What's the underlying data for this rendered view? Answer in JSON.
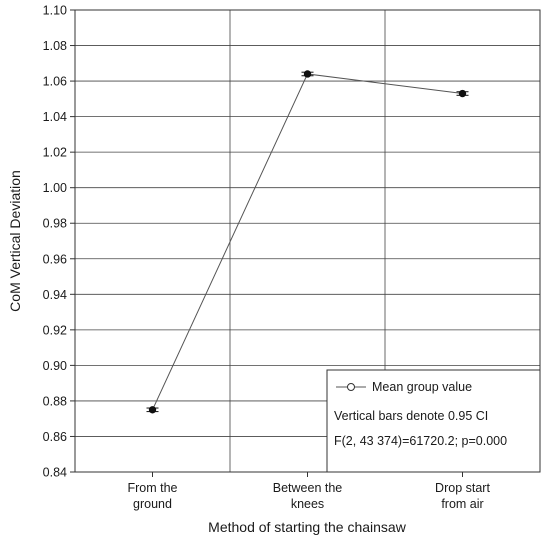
{
  "chart_data": {
    "type": "line",
    "xlabel": "Method of starting the chainsaw",
    "ylabel": "CoM Vertical Deviation",
    "categories": [
      [
        "From the",
        "ground"
      ],
      [
        "Between the",
        "knees"
      ],
      [
        "Drop start",
        "from air"
      ]
    ],
    "values": [
      0.875,
      1.064,
      1.053
    ],
    "ci_half_width": [
      0.001,
      0.001,
      0.001
    ],
    "ylim": [
      0.84,
      1.1
    ],
    "yticks": [
      "0.84",
      "0.86",
      "0.88",
      "0.90",
      "0.92",
      "0.94",
      "0.96",
      "0.98",
      "1.00",
      "1.02",
      "1.04",
      "1.06",
      "1.08",
      "1.10"
    ],
    "grid": true,
    "legend": {
      "position": "bottom-right",
      "series_label": "Mean group value",
      "note": "Vertical bars denote 0.95 CI",
      "stat": "F(2, 43 374)=61720.2; p=0.000"
    },
    "colors": {
      "line": "#555555",
      "marker": "#111111",
      "grid": "#444444"
    }
  }
}
